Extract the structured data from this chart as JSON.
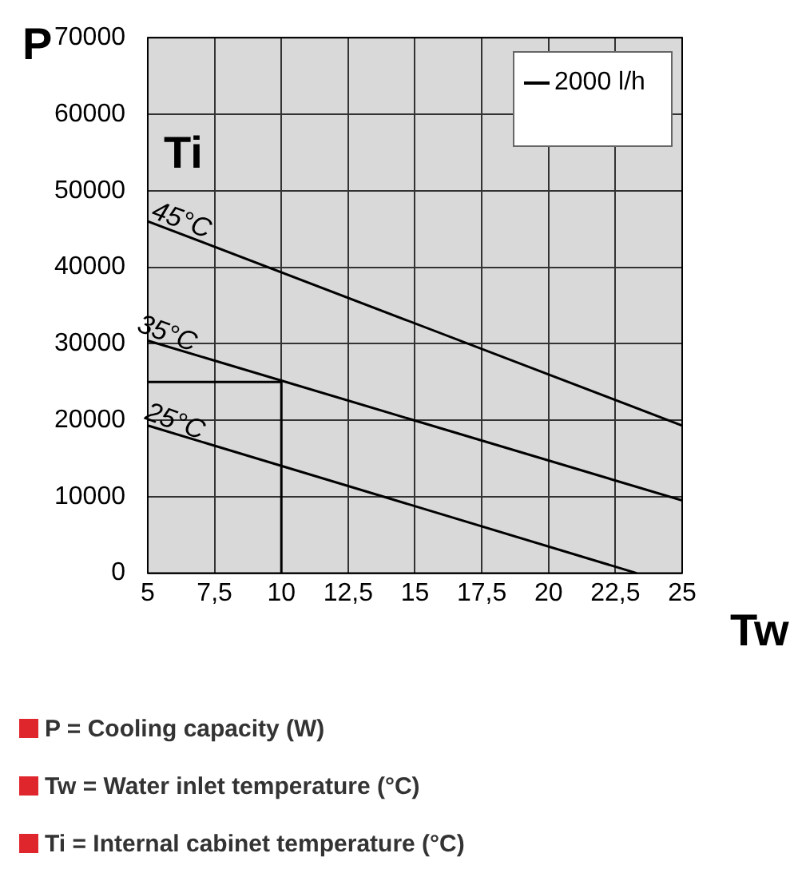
{
  "chart_data": {
    "type": "line",
    "xlabel": "Tw",
    "ylabel": "P",
    "xlim": [
      5,
      25
    ],
    "ylim": [
      0,
      70000
    ],
    "xticks": [
      5,
      {
        "value": 7.5,
        "label": "7,5"
      },
      10,
      {
        "value": 12.5,
        "label": "12,5"
      },
      15,
      {
        "value": 17.5,
        "label": "17,5"
      },
      20,
      {
        "value": 22.5,
        "label": "22,5"
      },
      25
    ],
    "yticks": [
      0,
      10000,
      20000,
      30000,
      40000,
      50000,
      60000,
      70000
    ],
    "grid": true,
    "legend": "top right",
    "marker": "none",
    "line_style": "solid",
    "series": [
      {
        "name": "2000 l/h",
        "color": "#000000",
        "x": [
          5,
          25
        ],
        "values": [
          46000,
          19300
        ]
      },
      {
        "color": "#000000",
        "x": [
          5,
          25
        ],
        "values": [
          30400,
          9500
        ]
      },
      {
        "color": "#000000",
        "x": [
          5,
          23.3
        ],
        "values": [
          19300,
          0
        ]
      },
      {
        "color": "#000000",
        "x": [
          5,
          10,
          10
        ],
        "values": [
          25000,
          25000,
          0
        ]
      }
    ],
    "annotations": [
      {
        "text": "45°C",
        "x": 5.5,
        "y": 45300
      },
      {
        "text": "35°C",
        "x": 5,
        "y": 30400
      },
      {
        "text": "25°C",
        "x": 5.25,
        "y": 19000
      },
      "Ti",
      "P = Cooling capacity (W)",
      "Tw = Water inlet temperature (°C)",
      "Ti = Internal cabinet temperature (°C)"
    ]
  }
}
